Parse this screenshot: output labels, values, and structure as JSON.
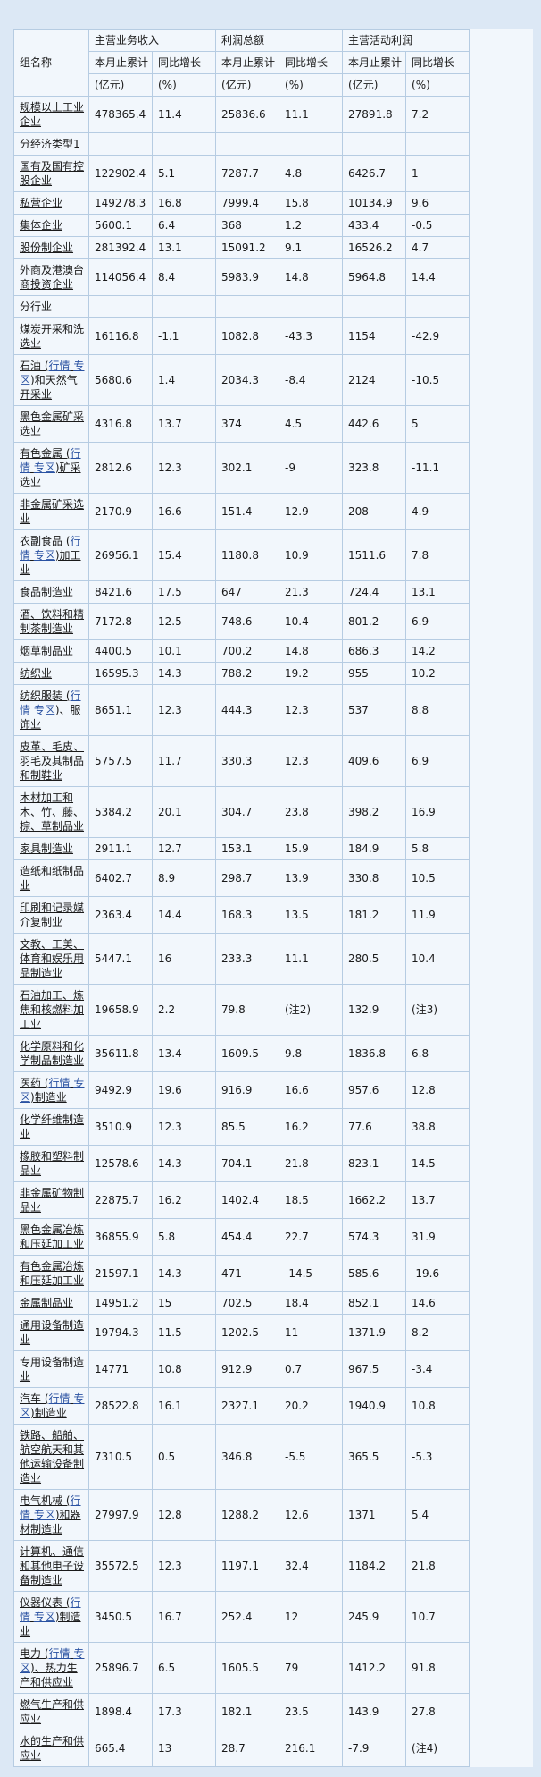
{
  "colors": {
    "page_bg": "#dce8f5",
    "cell_bg": "#f2f7fc",
    "border": "#b6cce2",
    "link_blue": "#2a52a2",
    "text": "#1a1a1a"
  },
  "table": {
    "corner_header": "组名称",
    "group_headers": [
      "主营业务收入",
      "利润总额",
      "主营活动利润"
    ],
    "sub_header_cumulative": "本月止累计",
    "sub_header_yoy": "同比增长",
    "unit_cumulative": "(亿元)",
    "unit_yoy": "(%)",
    "rows": [
      {
        "segments": [
          {
            "text": "规模以上工业企业"
          }
        ],
        "values": [
          "478365.4",
          "11.4",
          "25836.6",
          "11.1",
          "27891.8",
          "7.2"
        ]
      },
      {
        "section": true,
        "label": "分经济类型1"
      },
      {
        "segments": [
          {
            "text": "国有及国有控股企业"
          }
        ],
        "values": [
          "122902.4",
          "5.1",
          "7287.7",
          "4.8",
          "6426.7",
          "1"
        ]
      },
      {
        "segments": [
          {
            "text": "私营企业"
          }
        ],
        "values": [
          "149278.3",
          "16.8",
          "7999.4",
          "15.8",
          "10134.9",
          "9.6"
        ]
      },
      {
        "segments": [
          {
            "text": "集体企业"
          }
        ],
        "values": [
          "5600.1",
          "6.4",
          "368",
          "1.2",
          "433.4",
          "-0.5"
        ]
      },
      {
        "segments": [
          {
            "text": "股份制企业"
          }
        ],
        "values": [
          "281392.4",
          "13.1",
          "15091.2",
          "9.1",
          "16526.2",
          "4.7"
        ]
      },
      {
        "segments": [
          {
            "text": "外商及港澳台商投资企业"
          }
        ],
        "values": [
          "114056.4",
          "8.4",
          "5983.9",
          "14.8",
          "5964.8",
          "14.4"
        ]
      },
      {
        "section": true,
        "label": "分行业"
      },
      {
        "segments": [
          {
            "text": "煤炭开采和洗选业"
          }
        ],
        "values": [
          "16116.8",
          "-1.1",
          "1082.8",
          "-43.3",
          "1154",
          "-42.9"
        ]
      },
      {
        "segments": [
          {
            "text": "石油 ("
          },
          {
            "text": "行情",
            "link": true
          },
          {
            "text": " "
          },
          {
            "text": "专区",
            "link": true
          },
          {
            "text": ")和天然气开采业"
          }
        ],
        "values": [
          "5680.6",
          "1.4",
          "2034.3",
          "-8.4",
          "2124",
          "-10.5"
        ]
      },
      {
        "segments": [
          {
            "text": "黑色金属矿采选业"
          }
        ],
        "values": [
          "4316.8",
          "13.7",
          "374",
          "4.5",
          "442.6",
          "5"
        ]
      },
      {
        "segments": [
          {
            "text": "有色金属 ("
          },
          {
            "text": "行情",
            "link": true
          },
          {
            "text": " "
          },
          {
            "text": "专区",
            "link": true
          },
          {
            "text": ")矿采选业"
          }
        ],
        "values": [
          "2812.6",
          "12.3",
          "302.1",
          "-9",
          "323.8",
          "-11.1"
        ]
      },
      {
        "segments": [
          {
            "text": "非金属矿采选业"
          }
        ],
        "values": [
          "2170.9",
          "16.6",
          "151.4",
          "12.9",
          "208",
          "4.9"
        ]
      },
      {
        "segments": [
          {
            "text": "农副食品 ("
          },
          {
            "text": "行情",
            "link": true
          },
          {
            "text": " "
          },
          {
            "text": "专区",
            "link": true
          },
          {
            "text": ")加工业"
          }
        ],
        "values": [
          "26956.1",
          "15.4",
          "1180.8",
          "10.9",
          "1511.6",
          "7.8"
        ]
      },
      {
        "segments": [
          {
            "text": "食品制造业"
          }
        ],
        "values": [
          "8421.6",
          "17.5",
          "647",
          "21.3",
          "724.4",
          "13.1"
        ]
      },
      {
        "segments": [
          {
            "text": "酒、饮料和精制茶制造业"
          }
        ],
        "values": [
          "7172.8",
          "12.5",
          "748.6",
          "10.4",
          "801.2",
          "6.9"
        ]
      },
      {
        "segments": [
          {
            "text": "烟草制品业"
          }
        ],
        "values": [
          "4400.5",
          "10.1",
          "700.2",
          "14.8",
          "686.3",
          "14.2"
        ]
      },
      {
        "segments": [
          {
            "text": "纺织业"
          }
        ],
        "values": [
          "16595.3",
          "14.3",
          "788.2",
          "19.2",
          "955",
          "10.2"
        ]
      },
      {
        "segments": [
          {
            "text": "纺织服装 ("
          },
          {
            "text": "行情",
            "link": true
          },
          {
            "text": " "
          },
          {
            "text": "专区",
            "link": true
          },
          {
            "text": ")、服饰业"
          }
        ],
        "values": [
          "8651.1",
          "12.3",
          "444.3",
          "12.3",
          "537",
          "8.8"
        ]
      },
      {
        "segments": [
          {
            "text": "皮革、毛皮、羽毛及其制品和制鞋业"
          }
        ],
        "values": [
          "5757.5",
          "11.7",
          "330.3",
          "12.3",
          "409.6",
          "6.9"
        ]
      },
      {
        "segments": [
          {
            "text": "木材加工和木、竹、藤、棕、草制品业"
          }
        ],
        "values": [
          "5384.2",
          "20.1",
          "304.7",
          "23.8",
          "398.2",
          "16.9"
        ]
      },
      {
        "segments": [
          {
            "text": "家具制造业"
          }
        ],
        "values": [
          "2911.1",
          "12.7",
          "153.1",
          "15.9",
          "184.9",
          "5.8"
        ]
      },
      {
        "segments": [
          {
            "text": "造纸和纸制品业"
          }
        ],
        "values": [
          "6402.7",
          "8.9",
          "298.7",
          "13.9",
          "330.8",
          "10.5"
        ]
      },
      {
        "segments": [
          {
            "text": "印刷和记录媒介复制业"
          }
        ],
        "values": [
          "2363.4",
          "14.4",
          "168.3",
          "13.5",
          "181.2",
          "11.9"
        ]
      },
      {
        "segments": [
          {
            "text": "文教、工美、体育和娱乐用品制造业"
          }
        ],
        "values": [
          "5447.1",
          "16",
          "233.3",
          "11.1",
          "280.5",
          "10.4"
        ]
      },
      {
        "segments": [
          {
            "text": "石油加工、炼焦和核燃料加工业"
          }
        ],
        "values": [
          "19658.9",
          "2.2",
          "79.8",
          "(注2)",
          "132.9",
          "(注3)"
        ]
      },
      {
        "segments": [
          {
            "text": "化学原料和化学制品制造业"
          }
        ],
        "values": [
          "35611.8",
          "13.4",
          "1609.5",
          "9.8",
          "1836.8",
          "6.8"
        ]
      },
      {
        "segments": [
          {
            "text": "医药 ("
          },
          {
            "text": "行情",
            "link": true
          },
          {
            "text": " "
          },
          {
            "text": "专区",
            "link": true
          },
          {
            "text": ")制造业"
          }
        ],
        "values": [
          "9492.9",
          "19.6",
          "916.9",
          "16.6",
          "957.6",
          "12.8"
        ]
      },
      {
        "segments": [
          {
            "text": "化学纤维制造业"
          }
        ],
        "values": [
          "3510.9",
          "12.3",
          "85.5",
          "16.2",
          "77.6",
          "38.8"
        ]
      },
      {
        "segments": [
          {
            "text": "橡胶和塑料制品业"
          }
        ],
        "values": [
          "12578.6",
          "14.3",
          "704.1",
          "21.8",
          "823.1",
          "14.5"
        ]
      },
      {
        "segments": [
          {
            "text": "非金属矿物制品业"
          }
        ],
        "values": [
          "22875.7",
          "16.2",
          "1402.4",
          "18.5",
          "1662.2",
          "13.7"
        ]
      },
      {
        "segments": [
          {
            "text": "黑色金属冶炼和压延加工业"
          }
        ],
        "values": [
          "36855.9",
          "5.8",
          "454.4",
          "22.7",
          "574.3",
          "31.9"
        ]
      },
      {
        "segments": [
          {
            "text": "有色金属冶炼和压延加工业"
          }
        ],
        "values": [
          "21597.1",
          "14.3",
          "471",
          "-14.5",
          "585.6",
          "-19.6"
        ]
      },
      {
        "segments": [
          {
            "text": "金属制品业"
          }
        ],
        "values": [
          "14951.2",
          "15",
          "702.5",
          "18.4",
          "852.1",
          "14.6"
        ]
      },
      {
        "segments": [
          {
            "text": "通用设备制造业"
          }
        ],
        "values": [
          "19794.3",
          "11.5",
          "1202.5",
          "11",
          "1371.9",
          "8.2"
        ]
      },
      {
        "segments": [
          {
            "text": "专用设备制造业"
          }
        ],
        "values": [
          "14771",
          "10.8",
          "912.9",
          "0.7",
          "967.5",
          "-3.4"
        ]
      },
      {
        "segments": [
          {
            "text": "汽车 ("
          },
          {
            "text": "行情",
            "link": true
          },
          {
            "text": " "
          },
          {
            "text": "专区",
            "link": true
          },
          {
            "text": ")制造业"
          }
        ],
        "values": [
          "28522.8",
          "16.1",
          "2327.1",
          "20.2",
          "1940.9",
          "10.8"
        ]
      },
      {
        "segments": [
          {
            "text": "铁路、船舶、航空航天和其他运输设备制造业"
          }
        ],
        "values": [
          "7310.5",
          "0.5",
          "346.8",
          "-5.5",
          "365.5",
          "-5.3"
        ]
      },
      {
        "segments": [
          {
            "text": "电气机械 ("
          },
          {
            "text": "行情",
            "link": true
          },
          {
            "text": " "
          },
          {
            "text": "专区",
            "link": true
          },
          {
            "text": ")和器材制造业"
          }
        ],
        "values": [
          "27997.9",
          "12.8",
          "1288.2",
          "12.6",
          "1371",
          "5.4"
        ]
      },
      {
        "segments": [
          {
            "text": "计算机、通信和其他电子设备制造业"
          }
        ],
        "values": [
          "35572.5",
          "12.3",
          "1197.1",
          "32.4",
          "1184.2",
          "21.8"
        ]
      },
      {
        "segments": [
          {
            "text": "仪器仪表 ("
          },
          {
            "text": "行情",
            "link": true
          },
          {
            "text": " "
          },
          {
            "text": "专区",
            "link": true
          },
          {
            "text": ")制造业"
          }
        ],
        "values": [
          "3450.5",
          "16.7",
          "252.4",
          "12",
          "245.9",
          "10.7"
        ]
      },
      {
        "segments": [
          {
            "text": "电力 ("
          },
          {
            "text": "行情",
            "link": true
          },
          {
            "text": " "
          },
          {
            "text": "专区",
            "link": true
          },
          {
            "text": ")、热力生产和供应业"
          }
        ],
        "values": [
          "25896.7",
          "6.5",
          "1605.5",
          "79",
          "1412.2",
          "91.8"
        ]
      },
      {
        "segments": [
          {
            "text": "燃气生产和供应业"
          }
        ],
        "values": [
          "1898.4",
          "17.3",
          "182.1",
          "23.5",
          "143.9",
          "27.8"
        ]
      },
      {
        "segments": [
          {
            "text": "水的生产和供应业"
          }
        ],
        "values": [
          "665.4",
          "13",
          "28.7",
          "216.1",
          "-7.9",
          "(注4)"
        ]
      }
    ]
  }
}
